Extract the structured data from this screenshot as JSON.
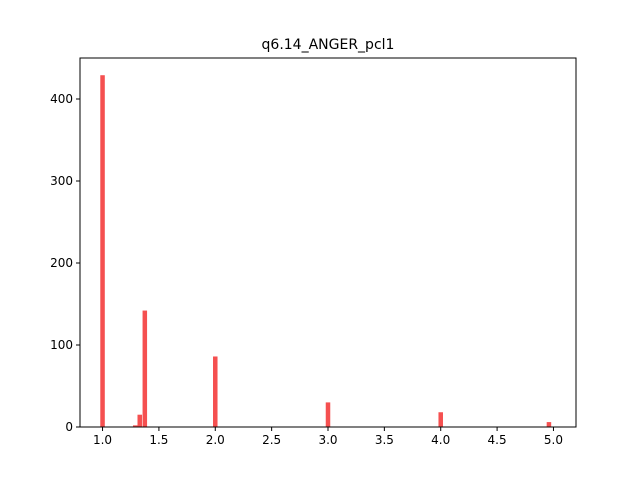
{
  "chart_data": {
    "type": "bar",
    "title": "q6.14_ANGER_pcl1",
    "xlabel": "",
    "ylabel": "",
    "xlim": [
      0.8,
      5.2
    ],
    "ylim": [
      0,
      450
    ],
    "x_ticks": [
      1.0,
      1.5,
      2.0,
      2.5,
      3.0,
      3.5,
      4.0,
      4.5,
      5.0
    ],
    "x_tick_labels": [
      "1.0",
      "1.5",
      "2.0",
      "2.5",
      "3.0",
      "3.5",
      "4.0",
      "4.5",
      "5.0"
    ],
    "y_ticks": [
      0,
      100,
      200,
      300,
      400
    ],
    "y_tick_labels": [
      "0",
      "100",
      "200",
      "300",
      "400"
    ],
    "grid": false,
    "bar_color": "#f55050",
    "bin_width": 0.04,
    "bars": [
      {
        "x": 1.0,
        "value": 429
      },
      {
        "x": 1.29,
        "value": 2
      },
      {
        "x": 1.33,
        "value": 15
      },
      {
        "x": 1.375,
        "value": 142
      },
      {
        "x": 2.0,
        "value": 86
      },
      {
        "x": 3.0,
        "value": 30
      },
      {
        "x": 4.0,
        "value": 18
      },
      {
        "x": 4.96,
        "value": 6
      }
    ]
  }
}
